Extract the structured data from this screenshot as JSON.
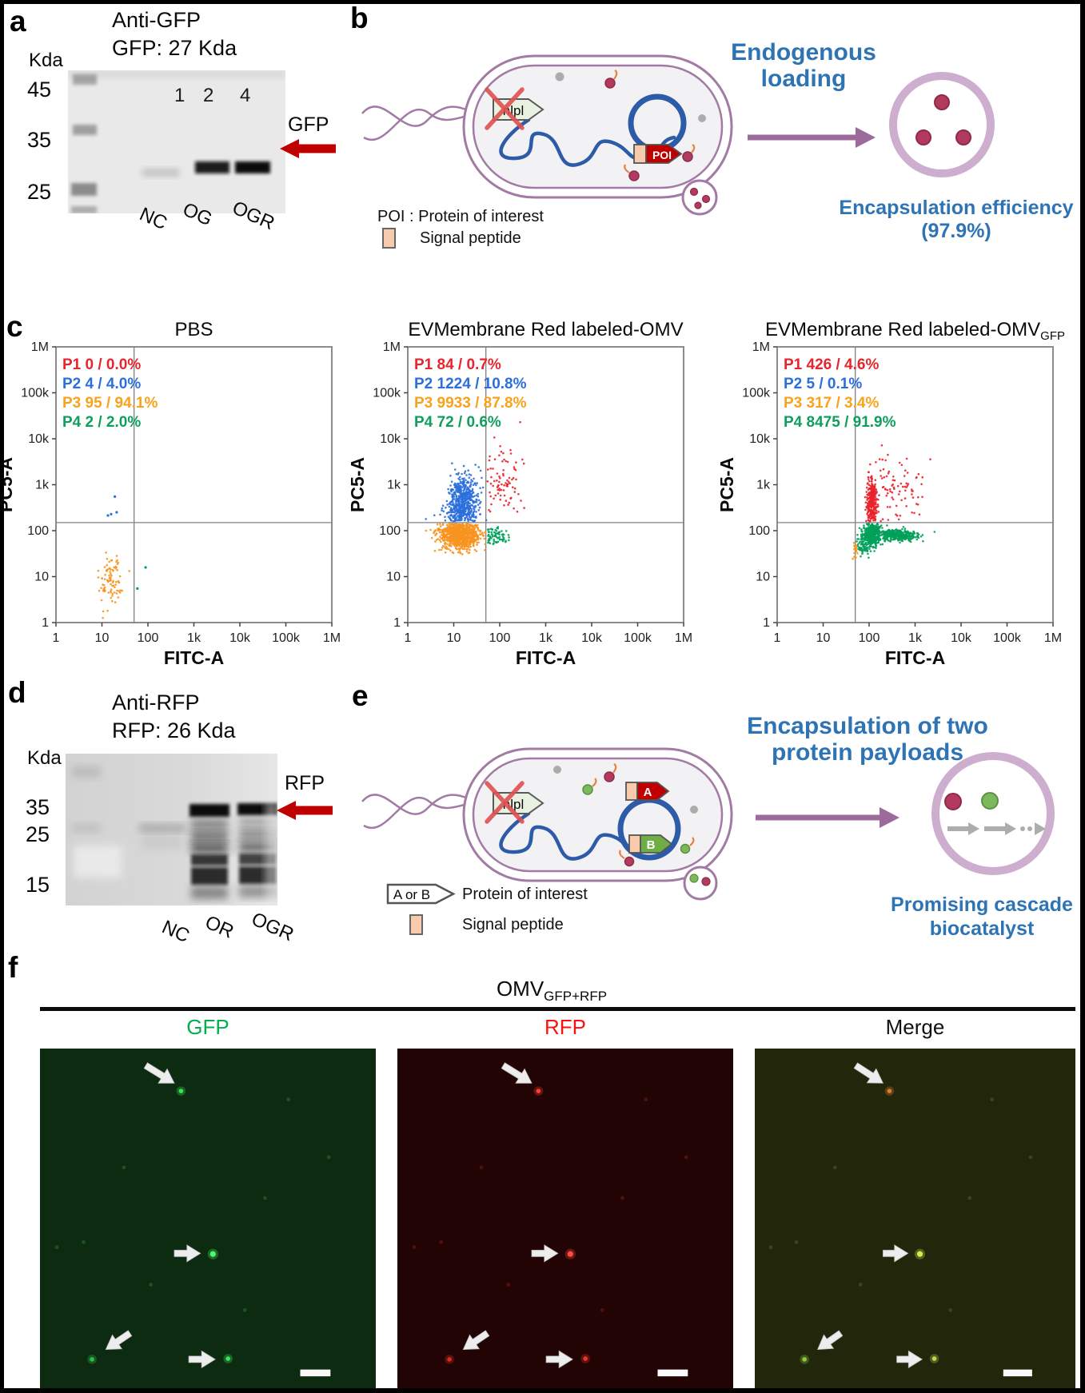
{
  "colors": {
    "accent_blue": "#2E74B5",
    "blot_arrow_red": "#C00000",
    "membrane_purple": "#A27BA4",
    "vesicle_ring": "#CDAECE",
    "plasmid_blue": "#2D5BA8",
    "payload_red": "#B23A5E",
    "payload_green": "#7CB85C",
    "signal_peptide_peach": "#F8CBAD",
    "scatter": {
      "red": "#E8242C",
      "blue": "#2A6FDB",
      "orange": "#F79420",
      "green": "#00A05A"
    }
  },
  "panels": {
    "a": {
      "letter": "a",
      "title1": "Anti-GFP",
      "title2": "GFP: 27 Kda",
      "kda": "Kda",
      "markers": [
        "45",
        "35",
        "25"
      ],
      "lanes": [
        "1",
        "2",
        "4"
      ],
      "band": "GFP",
      "lane_labels": [
        "NC",
        "OG",
        "OGR"
      ]
    },
    "b": {
      "letter": "b",
      "gene": "nlpl",
      "poi": "POI",
      "heading1": "Endogenous",
      "heading2": "loading",
      "legend_poi": "POI : Protein of interest",
      "legend_sp": "Signal peptide",
      "eff1": "Encapsulation efficiency",
      "eff2": "(97.9%)"
    },
    "c": {
      "letter": "c"
    },
    "d": {
      "letter": "d",
      "title1": "Anti-RFP",
      "title2": "RFP: 26 Kda",
      "kda": "Kda",
      "markers": [
        "35",
        "25",
        "15"
      ],
      "band": "RFP",
      "lane_labels": [
        "NC",
        "OR",
        "OGR"
      ]
    },
    "e": {
      "letter": "e",
      "gene": "nlpl",
      "payload_a": "A",
      "payload_b": "B",
      "heading1": "Encapsulation of two",
      "heading2": "protein payloads",
      "legend_box": "A or B",
      "legend_poi": "Protein of interest",
      "legend_sp": "Signal peptide",
      "result1": "Promising cascade",
      "result2": "biocatalyst"
    },
    "f": {
      "letter": "f",
      "title_main": "OMV",
      "title_sub": "GFP+RFP",
      "images": [
        {
          "label": "GFP",
          "label_color": "#00B050",
          "bg": "#0C2B10",
          "faint_color": "#2B7A38",
          "dot_colors": [
            "#3CE457",
            "#4DF96B",
            "#2FBF49",
            "#3FE35C"
          ]
        },
        {
          "label": "RFP",
          "label_color": "#FF1010",
          "bg": "#230405",
          "faint_color": "#7A1E18",
          "dot_colors": [
            "#FF3B2F",
            "#FF4A3C",
            "#D92A22",
            "#E8362B"
          ]
        },
        {
          "label": "Merge",
          "label_color": "#111111",
          "bg": "#22260B",
          "faint_color": "#5C6222",
          "dot_colors": [
            "#E07A2E",
            "#D6E94F",
            "#8CCB43",
            "#BEDC4A"
          ]
        }
      ],
      "dots": [
        [
          0.42,
          0.125
        ],
        [
          0.515,
          0.605
        ],
        [
          0.155,
          0.915
        ],
        [
          0.56,
          0.913
        ]
      ],
      "arrows": [
        {
          "from": [
            0.315,
            0.05
          ],
          "to": [
            0.4,
            0.102
          ]
        },
        {
          "from": [
            0.4,
            0.603
          ],
          "to": [
            0.478,
            0.603
          ]
        },
        {
          "from": [
            0.268,
            0.838
          ],
          "to": [
            0.196,
            0.886
          ]
        },
        {
          "from": [
            0.443,
            0.915
          ],
          "to": [
            0.522,
            0.915
          ]
        }
      ],
      "faint_dots": [
        [
          0.86,
          0.32
        ],
        [
          0.67,
          0.44
        ],
        [
          0.05,
          0.585
        ],
        [
          0.33,
          0.695
        ],
        [
          0.13,
          0.57
        ],
        [
          0.74,
          0.15
        ],
        [
          0.25,
          0.35
        ],
        [
          0.61,
          0.77
        ]
      ],
      "scalebar": {
        "x": 0.775,
        "y": 0.945,
        "w": 0.09,
        "h": 0.02
      }
    }
  },
  "chart_data": [
    {
      "type": "scatter",
      "title": "PBS",
      "xlabel": "FITC-A",
      "ylabel": "PC5-A",
      "xscale": "log",
      "yscale": "log",
      "xlim": [
        1,
        1000000
      ],
      "ylim": [
        1,
        1000000
      ],
      "tick_labels": [
        "1",
        "10",
        "100",
        "1k",
        "10k",
        "100k",
        "1M"
      ],
      "gate": {
        "x": 50,
        "y": 150
      },
      "stats": [
        {
          "label": "P1",
          "value": "0 / 0.0%",
          "color": "#E8242C"
        },
        {
          "label": "P2",
          "value": "4 / 4.0%",
          "color": "#2A6FDB"
        },
        {
          "label": "P3",
          "value": "95 / 94.1%",
          "color": "#F9A21B"
        },
        {
          "label": "P4",
          "value": "2 / 2.0%",
          "color": "#0E9E5E"
        }
      ],
      "clusters": [
        {
          "color": "orange",
          "n": 90,
          "cx": 1.18,
          "cy": 0.95,
          "sx": 0.13,
          "sy": 0.33,
          "clip": [
            0.55,
            1.62,
            0.05,
            2.05
          ]
        },
        {
          "color": "blue",
          "points": [
            [
              1.28,
              2.74
            ],
            [
              1.2,
              2.36
            ],
            [
              1.32,
              2.4
            ],
            [
              1.13,
              2.33
            ]
          ]
        },
        {
          "color": "green",
          "points": [
            [
              1.95,
              1.2
            ],
            [
              1.77,
              0.74
            ]
          ]
        }
      ]
    },
    {
      "type": "scatter",
      "title": "EVMembrane Red labeled-OMV",
      "xlabel": "FITC-A",
      "ylabel": "PC5-A",
      "xscale": "log",
      "yscale": "log",
      "xlim": [
        1,
        1000000
      ],
      "ylim": [
        1,
        1000000
      ],
      "tick_labels": [
        "1",
        "10",
        "100",
        "1k",
        "10k",
        "100k",
        "1M"
      ],
      "gate": {
        "x": 50,
        "y": 150
      },
      "stats": [
        {
          "label": "P1",
          "value": "84 / 0.7%",
          "color": "#E8242C"
        },
        {
          "label": "P2",
          "value": "1224 / 10.8%",
          "color": "#2A6FDB"
        },
        {
          "label": "P3",
          "value": "9933 / 87.8%",
          "color": "#F9A21B"
        },
        {
          "label": "P4",
          "value": "72 / 0.6%",
          "color": "#0E9E5E"
        }
      ],
      "clusters": [
        {
          "color": "blue",
          "n": 520,
          "cx": 1.22,
          "cy": 2.6,
          "sx": 0.16,
          "sy": 0.3,
          "clip": [
            0.4,
            1.71,
            2.2,
            3.75
          ]
        },
        {
          "color": "blue",
          "n": 60,
          "cx": 1.1,
          "cy": 2.35,
          "sx": 0.25,
          "sy": 0.12,
          "clip": [
            0.3,
            1.71,
            2.2,
            2.6
          ]
        },
        {
          "color": "orange",
          "n": 850,
          "cx": 1.15,
          "cy": 1.92,
          "sx": 0.23,
          "sy": 0.15,
          "clip": [
            0.1,
            1.7,
            1.3,
            2.15
          ]
        },
        {
          "color": "red",
          "n": 84,
          "cx": 2.05,
          "cy": 2.95,
          "sx": 0.22,
          "sy": 0.45,
          "clip": [
            1.73,
            2.95,
            2.25,
            4.45
          ]
        },
        {
          "color": "green",
          "n": 72,
          "cx": 1.87,
          "cy": 1.9,
          "sx": 0.16,
          "sy": 0.1,
          "clip": [
            1.72,
            3.1,
            1.55,
            2.13
          ]
        }
      ]
    },
    {
      "type": "scatter",
      "title": "EVMembrane Red labeled-OMV",
      "title_sub": "GFP",
      "xlabel": "FITC-A",
      "ylabel": "PC5-A",
      "xscale": "log",
      "yscale": "log",
      "xlim": [
        1,
        1000000
      ],
      "ylim": [
        1,
        1000000
      ],
      "tick_labels": [
        "1",
        "10",
        "100",
        "1k",
        "10k",
        "100k",
        "1M"
      ],
      "gate": {
        "x": 50,
        "y": 150
      },
      "stats": [
        {
          "label": "P1",
          "value": "426 / 4.6%",
          "color": "#E8242C"
        },
        {
          "label": "P2",
          "value": "5 / 0.1%",
          "color": "#2A6FDB"
        },
        {
          "label": "P3",
          "value": "317 / 3.4%",
          "color": "#F9A21B"
        },
        {
          "label": "P4",
          "value": "8475 / 91.9%",
          "color": "#0E9E5E"
        }
      ],
      "clusters": [
        {
          "color": "red",
          "n": 300,
          "cx": 2.06,
          "cy": 2.62,
          "sx": 0.055,
          "sy": 0.3,
          "clip": [
            1.9,
            2.25,
            2.2,
            3.75
          ]
        },
        {
          "color": "red",
          "n": 80,
          "cx": 2.6,
          "cy": 2.9,
          "sx": 0.33,
          "sy": 0.42,
          "clip": [
            2.2,
            4.2,
            2.2,
            4.15
          ]
        },
        {
          "color": "green",
          "n": 420,
          "cx": 2.07,
          "cy": 1.93,
          "sx": 0.1,
          "sy": 0.12,
          "clip": [
            1.78,
            2.45,
            1.45,
            2.15
          ]
        },
        {
          "color": "green",
          "n": 90,
          "cx": 1.87,
          "cy": 1.7,
          "sx": 0.08,
          "sy": 0.12,
          "clip": [
            1.7,
            2.05,
            1.4,
            1.95
          ]
        },
        {
          "color": "green",
          "n": 300,
          "cx": 2.62,
          "cy": 1.9,
          "sx": 0.25,
          "sy": 0.07,
          "clip": [
            2.3,
            3.55,
            1.5,
            2.1
          ]
        },
        {
          "color": "orange",
          "n": 16,
          "cx": 1.71,
          "cy": 1.56,
          "sx": 0.035,
          "sy": 0.1,
          "clip": [
            1.64,
            1.78,
            1.3,
            1.8
          ]
        }
      ]
    }
  ]
}
